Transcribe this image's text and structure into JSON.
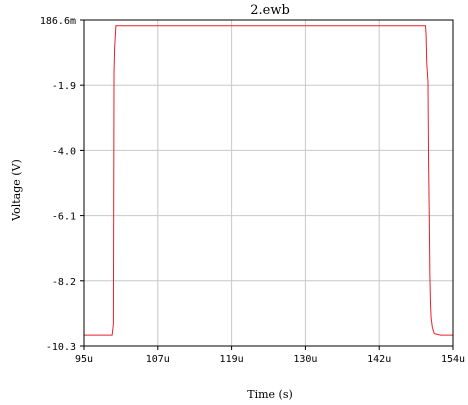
{
  "chart_data": {
    "type": "line",
    "title": "2.ewb",
    "xlabel": "Time (s)",
    "ylabel": "Voltage (V)",
    "x_ticks": [
      "95u",
      "107u",
      "119u",
      "130u",
      "142u",
      "154u"
    ],
    "y_ticks": [
      "186.6m",
      "-1.9",
      "-4.0",
      "-6.1",
      "-8.2",
      "-10.3"
    ],
    "xlim": [
      95,
      154
    ],
    "ylim": [
      -10.3,
      0.1866
    ],
    "grid": true,
    "colors": {
      "series": "#e8202a",
      "grid": "#c8c8c8",
      "axis": "#000000"
    },
    "series": [
      {
        "x_unit": "us",
        "points": [
          [
            95.0,
            -9.95
          ],
          [
            99.5,
            -9.95
          ],
          [
            99.7,
            -9.6
          ],
          [
            99.8,
            -1.5
          ],
          [
            99.9,
            -0.7
          ],
          [
            100.1,
            0.0
          ],
          [
            149.6,
            0.0
          ],
          [
            149.7,
            -0.3
          ],
          [
            149.8,
            -1.2
          ],
          [
            150.0,
            -1.8
          ],
          [
            150.1,
            -4.5
          ],
          [
            150.2,
            -6.0
          ],
          [
            150.3,
            -8.0
          ],
          [
            150.4,
            -8.9
          ],
          [
            150.5,
            -9.4
          ],
          [
            150.7,
            -9.7
          ],
          [
            151.0,
            -9.9
          ],
          [
            152.0,
            -9.95
          ],
          [
            154.0,
            -9.95
          ]
        ]
      }
    ]
  }
}
